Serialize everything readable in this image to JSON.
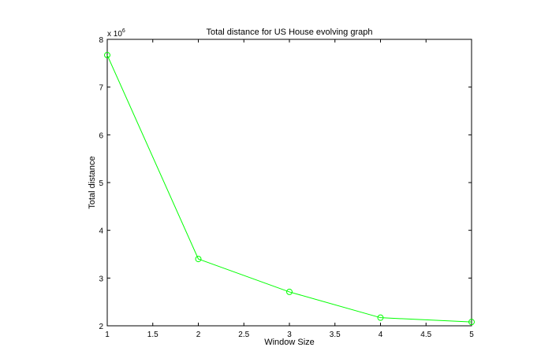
{
  "chart_data": {
    "type": "line",
    "title": "Total distance for US House evolving graph",
    "xlabel": "Window Size",
    "ylabel": "Total distance",
    "y_multiplier_label": "x 10",
    "y_multiplier_exponent": "6",
    "xlim": [
      1,
      5
    ],
    "ylim": [
      2,
      8
    ],
    "x_ticks": [
      1,
      1.5,
      2,
      2.5,
      3,
      3.5,
      4,
      4.5,
      5
    ],
    "x_tick_labels": [
      "1",
      "1.5",
      "2",
      "2.5",
      "3",
      "3.5",
      "4",
      "4.5",
      "5"
    ],
    "y_ticks": [
      2,
      3,
      4,
      5,
      6,
      7,
      8
    ],
    "y_tick_labels": [
      "2",
      "3",
      "4",
      "5",
      "6",
      "7",
      "8"
    ],
    "grid": false,
    "legend": false,
    "series": [
      {
        "color": "#00ff00",
        "marker": "circle",
        "x": [
          1,
          2,
          3,
          4,
          5
        ],
        "y": [
          7.67,
          3.4,
          2.71,
          2.17,
          2.08
        ]
      }
    ]
  }
}
